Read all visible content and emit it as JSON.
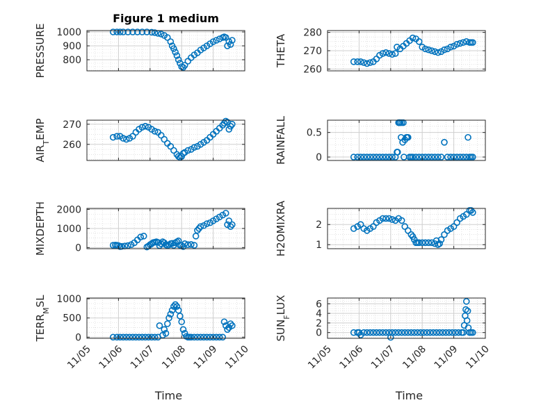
{
  "chart_data": [
    {
      "type": "scatter",
      "title": "Figure 1 medium",
      "ylabel": "PRESSURE",
      "ylim": [
        720,
        1010
      ],
      "yticks": [
        "800",
        "900",
        "1000"
      ],
      "grid": true,
      "x": [
        5.83,
        5.95,
        6.05,
        6.15,
        6.3,
        6.45,
        6.6,
        6.75,
        6.9,
        7.05,
        7.15,
        7.25,
        7.35,
        7.45,
        7.55,
        7.65,
        7.7,
        7.75,
        7.8,
        7.85,
        7.9,
        7.95,
        8.0,
        8.05,
        8.1,
        8.2,
        8.3,
        8.4,
        8.5,
        8.6,
        8.7,
        8.8,
        8.9,
        9.0,
        9.1,
        9.2,
        9.3,
        9.35,
        9.4,
        9.45,
        9.5,
        9.55,
        9.6
      ],
      "y": [
        1000,
        1000,
        1000,
        1000,
        1000,
        1000,
        1000,
        1000,
        1000,
        998,
        995,
        990,
        985,
        975,
        960,
        930,
        900,
        880,
        855,
        830,
        800,
        775,
        750,
        745,
        760,
        790,
        815,
        835,
        850,
        870,
        885,
        900,
        915,
        930,
        940,
        950,
        960,
        965,
        960,
        900,
        930,
        910,
        940
      ]
    },
    {
      "type": "scatter",
      "ylabel": "THETA",
      "ylim": [
        259,
        281
      ],
      "yticks": [
        "260",
        "270",
        "280"
      ],
      "grid": true,
      "x": [
        5.83,
        5.95,
        6.05,
        6.15,
        6.25,
        6.35,
        6.45,
        6.55,
        6.65,
        6.75,
        6.85,
        6.95,
        7.05,
        7.15,
        7.2,
        7.3,
        7.4,
        7.5,
        7.6,
        7.7,
        7.8,
        7.9,
        8.0,
        8.1,
        8.2,
        8.3,
        8.4,
        8.5,
        8.6,
        8.7,
        8.8,
        8.9,
        9.0,
        9.1,
        9.2,
        9.3,
        9.4,
        9.5,
        9.55,
        9.6
      ],
      "y": [
        264,
        264,
        264,
        263.5,
        263,
        263.5,
        264,
        265.5,
        267.5,
        268.5,
        269,
        268.5,
        268,
        268.5,
        272,
        271,
        272.5,
        274,
        275.5,
        277,
        276.5,
        275,
        272,
        271,
        270.5,
        270,
        269.5,
        269,
        269.5,
        270.5,
        271,
        272,
        272.5,
        273.5,
        274,
        274.5,
        275,
        274.5,
        274.5,
        274.5
      ]
    },
    {
      "type": "scatter",
      "ylabel": "AIR_TEMP",
      "ylim": [
        252,
        272
      ],
      "yticks": [
        "260",
        "270"
      ],
      "grid": true,
      "x": [
        5.83,
        5.95,
        6.05,
        6.15,
        6.25,
        6.35,
        6.45,
        6.55,
        6.65,
        6.75,
        6.85,
        6.95,
        7.05,
        7.15,
        7.25,
        7.35,
        7.45,
        7.55,
        7.65,
        7.75,
        7.85,
        7.9,
        7.95,
        8.0,
        8.05,
        8.1,
        8.2,
        8.3,
        8.4,
        8.5,
        8.6,
        8.7,
        8.8,
        8.9,
        9.0,
        9.1,
        9.2,
        9.3,
        9.35,
        9.4,
        9.45,
        9.5,
        9.55,
        9.6
      ],
      "y": [
        263.5,
        264,
        264,
        263,
        262.5,
        263,
        264,
        266,
        267.5,
        268.5,
        269,
        268.5,
        267.5,
        266.5,
        266,
        264.5,
        262.5,
        260.5,
        259,
        257,
        255,
        254,
        253.5,
        254,
        255.5,
        256,
        257,
        257.5,
        258.5,
        259,
        260,
        261,
        262,
        263.5,
        265,
        266.5,
        268,
        269.5,
        270.5,
        271.5,
        271,
        267.5,
        269,
        270
      ]
    },
    {
      "type": "scatter",
      "ylabel": "RAINFALL",
      "ylim": [
        -0.07,
        0.75
      ],
      "yticks": [
        "0",
        "0.5"
      ],
      "grid": true,
      "x": [
        5.83,
        5.95,
        6.05,
        6.15,
        6.25,
        6.35,
        6.45,
        6.55,
        6.65,
        6.75,
        6.85,
        6.95,
        7.05,
        7.15,
        7.2,
        7.22,
        7.25,
        7.28,
        7.3,
        7.33,
        7.35,
        7.38,
        7.4,
        7.42,
        7.45,
        7.5,
        7.52,
        7.55,
        7.6,
        7.65,
        7.7,
        7.8,
        7.9,
        8.0,
        8.1,
        8.2,
        8.3,
        8.4,
        8.5,
        8.6,
        8.7,
        8.8,
        8.9,
        9.0,
        9.1,
        9.2,
        9.3,
        9.4,
        9.45,
        9.5,
        9.55,
        9.6
      ],
      "y": [
        0,
        0,
        0,
        0,
        0,
        0,
        0,
        0,
        0,
        0,
        0,
        0,
        0,
        0,
        0.1,
        0.1,
        0.7,
        0.7,
        0.7,
        0.4,
        0.7,
        0.3,
        0.7,
        0,
        0.35,
        0.4,
        0.4,
        0.4,
        0,
        0,
        0,
        0,
        0,
        0,
        0,
        0,
        0,
        0,
        0,
        0,
        0.3,
        0,
        0,
        0,
        0,
        0,
        0,
        0,
        0.4,
        0,
        0,
        0
      ]
    },
    {
      "type": "scatter",
      "ylabel": "MIXDEPTH",
      "ylim": [
        -60,
        2050
      ],
      "yticks": [
        "0",
        "1000",
        "2000"
      ],
      "grid": true,
      "x": [
        5.83,
        5.9,
        5.95,
        6.0,
        6.05,
        6.1,
        6.2,
        6.3,
        6.4,
        6.5,
        6.6,
        6.7,
        6.8,
        6.9,
        6.95,
        7.0,
        7.05,
        7.1,
        7.15,
        7.2,
        7.25,
        7.3,
        7.35,
        7.4,
        7.45,
        7.5,
        7.55,
        7.6,
        7.65,
        7.7,
        7.75,
        7.8,
        7.85,
        7.9,
        7.95,
        8.0,
        8.05,
        8.1,
        8.2,
        8.3,
        8.4,
        8.45,
        8.5,
        8.55,
        8.6,
        8.7,
        8.8,
        8.9,
        9.0,
        9.1,
        9.2,
        9.3,
        9.4,
        9.45,
        9.5,
        9.55,
        9.6
      ],
      "y": [
        120,
        130,
        120,
        100,
        50,
        60,
        80,
        100,
        150,
        250,
        400,
        550,
        600,
        30,
        80,
        150,
        200,
        260,
        280,
        300,
        270,
        100,
        200,
        300,
        250,
        150,
        100,
        140,
        200,
        220,
        120,
        250,
        300,
        350,
        120,
        100,
        50,
        200,
        150,
        160,
        120,
        600,
        900,
        1000,
        1100,
        1150,
        1250,
        1300,
        1400,
        1500,
        1600,
        1700,
        1800,
        1200,
        1400,
        1100,
        1200
      ]
    },
    {
      "type": "scatter",
      "ylabel": "H2OMIXRA",
      "ylim": [
        0.8,
        2.8
      ],
      "yticks": [
        "1",
        "2"
      ],
      "grid": true,
      "x": [
        5.83,
        5.95,
        6.05,
        6.15,
        6.25,
        6.35,
        6.45,
        6.55,
        6.65,
        6.75,
        6.85,
        6.95,
        7.05,
        7.15,
        7.25,
        7.35,
        7.45,
        7.55,
        7.65,
        7.7,
        7.75,
        7.8,
        7.85,
        7.9,
        8.0,
        8.1,
        8.2,
        8.3,
        8.4,
        8.45,
        8.5,
        8.55,
        8.6,
        8.7,
        8.8,
        8.9,
        9.0,
        9.1,
        9.2,
        9.3,
        9.4,
        9.5,
        9.55,
        9.6
      ],
      "y": [
        1.8,
        1.9,
        2.0,
        1.8,
        1.7,
        1.8,
        1.9,
        2.1,
        2.2,
        2.3,
        2.3,
        2.3,
        2.25,
        2.2,
        2.3,
        2.2,
        1.9,
        1.7,
        1.5,
        1.4,
        1.25,
        1.1,
        1.1,
        1.1,
        1.1,
        1.1,
        1.1,
        1.1,
        1.05,
        1.2,
        1.0,
        1.05,
        1.25,
        1.5,
        1.7,
        1.8,
        1.9,
        2.1,
        2.3,
        2.4,
        2.5,
        2.7,
        2.7,
        2.6
      ]
    },
    {
      "type": "scatter",
      "ylabel": "TERR_MSL",
      "ylim": [
        -30,
        1020
      ],
      "yticks": [
        "0",
        "500",
        "1000"
      ],
      "grid": true,
      "x": [
        5.83,
        5.95,
        6.05,
        6.15,
        6.25,
        6.35,
        6.45,
        6.55,
        6.65,
        6.75,
        6.85,
        6.95,
        7.05,
        7.15,
        7.25,
        7.3,
        7.4,
        7.45,
        7.5,
        7.55,
        7.6,
        7.65,
        7.7,
        7.75,
        7.8,
        7.85,
        7.9,
        7.95,
        8.0,
        8.05,
        8.1,
        8.15,
        8.2,
        8.25,
        8.3,
        8.4,
        8.5,
        8.6,
        8.7,
        8.8,
        8.9,
        9.0,
        9.1,
        9.2,
        9.3,
        9.35,
        9.4,
        9.45,
        9.5,
        9.55,
        9.6
      ],
      "y": [
        0,
        0,
        0,
        0,
        0,
        0,
        0,
        0,
        0,
        0,
        0,
        0,
        0,
        0,
        0,
        300,
        50,
        200,
        100,
        350,
        500,
        600,
        700,
        800,
        850,
        800,
        700,
        550,
        400,
        200,
        100,
        20,
        0,
        0,
        0,
        0,
        0,
        0,
        0,
        0,
        0,
        0,
        0,
        0,
        0,
        400,
        300,
        200,
        250,
        350,
        300
      ]
    },
    {
      "type": "scatter",
      "ylabel": "SUN_FLUX",
      "ylim": [
        -1.2,
        7.2
      ],
      "yticks": [
        "0",
        "2",
        "4",
        "6"
      ],
      "grid": true,
      "x": [
        5.83,
        5.95,
        6.0,
        6.05,
        6.15,
        6.25,
        6.35,
        6.45,
        6.55,
        6.65,
        6.75,
        6.85,
        6.95,
        7.0,
        7.05,
        7.15,
        7.25,
        7.35,
        7.45,
        7.55,
        7.65,
        7.75,
        7.85,
        7.95,
        8.05,
        8.15,
        8.25,
        8.35,
        8.45,
        8.55,
        8.65,
        8.75,
        8.85,
        8.95,
        9.05,
        9.15,
        9.25,
        9.3,
        9.33,
        9.36,
        9.38,
        9.4,
        9.42,
        9.44,
        9.46,
        9.5,
        9.55,
        9.6
      ],
      "y": [
        0,
        0,
        0,
        -0.5,
        0,
        0,
        0,
        0,
        0,
        0,
        0,
        0,
        0,
        -1,
        0,
        0,
        0,
        0,
        0,
        0,
        0,
        0,
        0,
        0,
        0,
        0,
        0,
        0,
        0,
        0,
        0,
        0,
        0,
        0,
        0,
        0,
        0,
        0,
        1.5,
        3.5,
        4.8,
        6.5,
        2.5,
        4.5,
        1.0,
        0,
        0,
        0
      ]
    }
  ],
  "x_axis": {
    "label": "Time",
    "xlim": [
      5.0,
      10.0
    ],
    "tick_values": [
      5,
      6,
      7,
      8,
      9,
      10
    ],
    "tick_labels": [
      "11/05",
      "11/06",
      "11/07",
      "11/08",
      "11/09",
      "11/10"
    ]
  },
  "colors": {
    "marker": "#0072bd",
    "grid": "#cfcfcf",
    "axis": "#262626"
  }
}
